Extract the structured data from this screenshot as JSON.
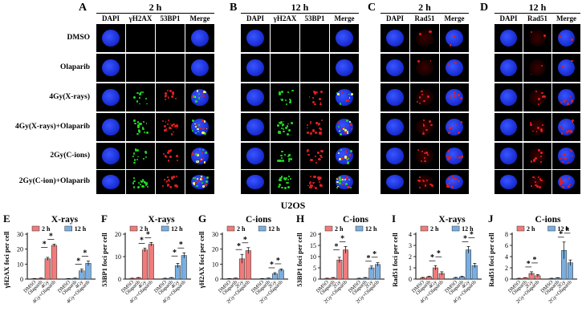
{
  "panels_top": [
    {
      "letter": "A",
      "time": "2 h",
      "columns": [
        "DAPI",
        "γH2AX",
        "53BP1",
        "Merge"
      ]
    },
    {
      "letter": "B",
      "time": "12 h",
      "columns": [
        "DAPI",
        "γH2AX",
        "53BP1",
        "Merge"
      ]
    },
    {
      "letter": "C",
      "time": "2 h",
      "columns": [
        "DAPI",
        "Rad51",
        "Merge"
      ]
    },
    {
      "letter": "D",
      "time": "12 h",
      "columns": [
        "DAPI",
        "Rad51",
        "Merge"
      ]
    }
  ],
  "row_labels": [
    "DMSO",
    "Olaparib",
    "4Gy(X-rays)",
    "4Gy(X-rays)+Olaparib",
    "2Gy(C-ions)",
    "2Gy(C-ion)+Olaparib"
  ],
  "cell_line": "U2OS",
  "colors": {
    "two_h": "#f07b7b",
    "twelve_h": "#7aaee0",
    "dapi": "#1a2fd6",
    "green": "#22d622",
    "red": "#e21e1e"
  },
  "chart_data": [
    {
      "letter": "E",
      "title": "X-rays",
      "type": "bar",
      "ylabel": "γH2AX foci per cell",
      "ylim": [
        0,
        30
      ],
      "yticks": [
        0,
        10,
        20,
        30
      ],
      "legend": [
        "2 h",
        "12 h"
      ],
      "categories": [
        "DMSO",
        "Olaparib",
        "4Gy",
        "4Gy+Olaparib"
      ],
      "series": [
        {
          "name": "2 h",
          "values": [
            0.3,
            0.5,
            13.5,
            22.5
          ],
          "err": [
            0.1,
            0.2,
            1.0,
            0.8
          ]
        },
        {
          "name": "12 h",
          "values": [
            0.3,
            0.5,
            5.5,
            10.5
          ],
          "err": [
            0.1,
            0.2,
            1.2,
            1.5
          ]
        }
      ]
    },
    {
      "letter": "F",
      "title": "X-rays",
      "type": "bar",
      "ylabel": "53BP1 foci per cell",
      "ylim": [
        0,
        20
      ],
      "yticks": [
        0,
        10,
        20
      ],
      "legend": [
        "2 h",
        "12 h"
      ],
      "categories": [
        "DMSO",
        "Olaparib",
        "4Gy",
        "4Gy+Olaparib"
      ],
      "series": [
        {
          "name": "2 h",
          "values": [
            0.3,
            0.5,
            13.0,
            15.5
          ],
          "err": [
            0.1,
            0.2,
            0.8,
            0.8
          ]
        },
        {
          "name": "12 h",
          "values": [
            0.3,
            0.5,
            6.0,
            10.5
          ],
          "err": [
            0.1,
            0.2,
            1.0,
            1.2
          ]
        }
      ]
    },
    {
      "letter": "G",
      "title": "C-ions",
      "type": "bar",
      "ylabel": "γH2AX foci per cell",
      "ylim": [
        0,
        30
      ],
      "yticks": [
        0,
        10,
        20,
        30
      ],
      "legend": [
        "2 h",
        "12 h"
      ],
      "categories": [
        "DMSO",
        "Olaparib",
        "2Gy",
        "2Gy+Olaparib"
      ],
      "series": [
        {
          "name": "2 h",
          "values": [
            0.3,
            0.5,
            13.5,
            19.0
          ],
          "err": [
            0.1,
            0.2,
            3.0,
            2.0
          ]
        },
        {
          "name": "12 h",
          "values": [
            0.3,
            0.5,
            3.5,
            6.0
          ],
          "err": [
            0.1,
            0.2,
            0.8,
            0.8
          ]
        }
      ]
    },
    {
      "letter": "H",
      "title": "C-ions",
      "type": "bar",
      "ylabel": "53BP1 foci per cell",
      "ylim": [
        0,
        20
      ],
      "yticks": [
        0,
        5,
        10,
        15,
        20
      ],
      "legend": [
        "2 h",
        "12 h"
      ],
      "categories": [
        "DMSO",
        "Olaparib",
        "2Gy",
        "2Gy+Olaparib"
      ],
      "series": [
        {
          "name": "2 h",
          "values": [
            0.3,
            0.5,
            8.5,
            13.0
          ],
          "err": [
            0.1,
            0.2,
            1.2,
            1.5
          ]
        },
        {
          "name": "12 h",
          "values": [
            0.3,
            0.5,
            5.0,
            6.5
          ],
          "err": [
            0.1,
            0.2,
            0.8,
            0.8
          ]
        }
      ]
    },
    {
      "letter": "I",
      "title": "X-rays",
      "type": "bar",
      "ylabel": "Rad51 foci per cell",
      "ylim": [
        0,
        4
      ],
      "yticks": [
        0,
        1,
        2,
        3,
        4
      ],
      "legend": [
        "2 h",
        "12 h"
      ],
      "categories": [
        "DMSO",
        "Olaparib",
        "4Gy",
        "4Gy+Olaparib"
      ],
      "series": [
        {
          "name": "2 h",
          "values": [
            0.1,
            0.2,
            1.0,
            0.5
          ],
          "err": [
            0.05,
            0.05,
            0.2,
            0.15
          ]
        },
        {
          "name": "12 h",
          "values": [
            0.1,
            0.2,
            2.6,
            1.2
          ],
          "err": [
            0.05,
            0.05,
            0.3,
            0.2
          ]
        }
      ]
    },
    {
      "letter": "J",
      "title": "C-ions",
      "type": "bar",
      "ylabel": "Rad51 foci per cell",
      "ylim": [
        0,
        8
      ],
      "yticks": [
        0,
        2,
        4,
        6,
        8
      ],
      "legend": [
        "2 h",
        "12 h"
      ],
      "categories": [
        "DMSO",
        "Olaparib",
        "2Gy",
        "2Gy+Olaparib"
      ],
      "series": [
        {
          "name": "2 h",
          "values": [
            0.1,
            0.2,
            1.0,
            0.6
          ],
          "err": [
            0.05,
            0.05,
            0.3,
            0.2
          ]
        },
        {
          "name": "12 h",
          "values": [
            0.1,
            0.2,
            5.1,
            2.9
          ],
          "err": [
            0.05,
            0.05,
            1.5,
            0.5
          ]
        }
      ]
    }
  ],
  "significance_mark": "*"
}
